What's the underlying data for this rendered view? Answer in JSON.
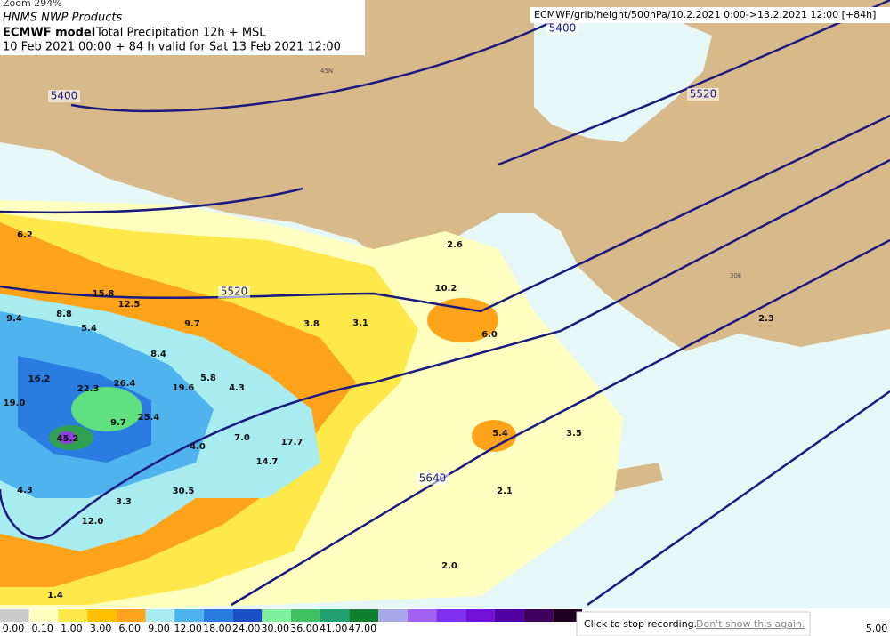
{
  "header": {
    "org": "HNMS NWP Products",
    "model": "ECMWF model",
    "product": "Total Precipitation 12h + MSL",
    "valid": "10 Feb 2021 00:00 + 84 h valid for Sat 13 Feb 2021 12:00",
    "zoom": "Zoom 294%",
    "source": "ECMWF/grib/height/500hPa/10.2.2021 0:00->13.2.2021 12:00 [+84h]"
  },
  "contours": [
    "5400",
    "5400",
    "5520",
    "5520",
    "5640"
  ],
  "grid_labels": [
    "45N",
    "30E"
  ],
  "precip_labels": [
    "6.2",
    "15.8",
    "12.5",
    "8.8",
    "9.4",
    "5.4",
    "9.7",
    "8.4",
    "16.2",
    "22.3",
    "26.4",
    "19.6",
    "5.8",
    "4.3",
    "19.0",
    "9.7",
    "25.4",
    "45.2",
    "7.0",
    "17.7",
    "4.0",
    "14.7",
    "4.3",
    "30.5",
    "3.3",
    "12.0",
    "1.4",
    "2.0",
    "2.1",
    "5.4",
    "3.5",
    "6.0",
    "10.2",
    "2.6",
    "3.1",
    "3.8",
    "2.3"
  ],
  "legend": [
    "0.00",
    "0.10",
    "1.00",
    "3.00",
    "6.00",
    "9.00",
    "12.00",
    "18.00",
    "24.00",
    "30.00",
    "36.00",
    "41.00",
    "47.00",
    "5.00"
  ],
  "popup": {
    "text": "Click to stop recording.",
    "link": "Don't show this again."
  }
}
